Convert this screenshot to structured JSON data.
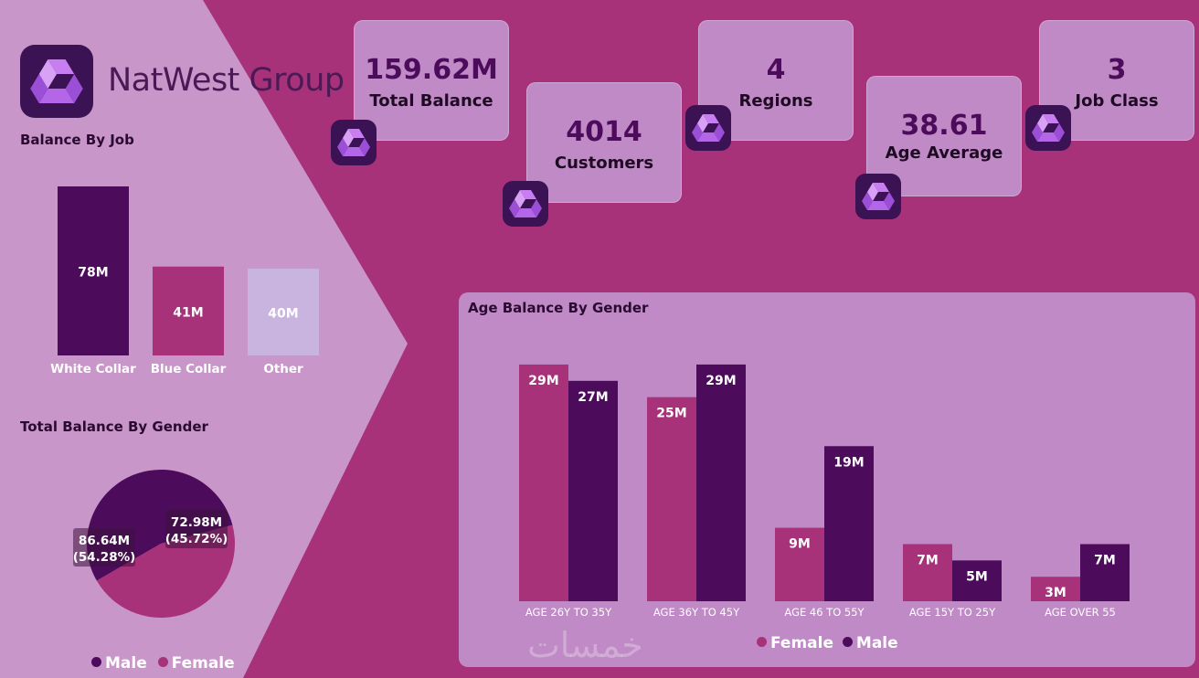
{
  "brand": {
    "name_bold": "NatWest",
    "name_light": " Group"
  },
  "colors": {
    "background": "#a8327a",
    "panel": "#bf8ac5",
    "female": "#a8327a",
    "male": "#4d0b5c",
    "other": "#c9b4e0"
  },
  "kpis": [
    {
      "value": "159.62M",
      "label": "Total Balance"
    },
    {
      "value": "4014",
      "label": "Customers"
    },
    {
      "value": "4",
      "label": "Regions"
    },
    {
      "value": "38.61",
      "label": "Age Average"
    },
    {
      "value": "3",
      "label": "Job Class"
    }
  ],
  "watermark": "خمسات",
  "chart_data": [
    {
      "type": "bar",
      "title": "Balance By Job",
      "categories": [
        "White Collar",
        "Blue Collar",
        "Other"
      ],
      "values": [
        78,
        41,
        40
      ],
      "data_labels": [
        "78M",
        "41M",
        "40M"
      ],
      "unit": "M",
      "colors": [
        "#4d0b5c",
        "#a8327a",
        "#c9b4e0"
      ]
    },
    {
      "type": "pie",
      "title": "Total Balance By Gender",
      "slices": [
        {
          "name": "Male",
          "value": 86.64,
          "percent": 54.28,
          "label": "86.64M",
          "pct_label": "(54.28%)",
          "color": "#4d0b5c"
        },
        {
          "name": "Female",
          "value": 72.98,
          "percent": 45.72,
          "label": "72.98M",
          "pct_label": "(45.72%)",
          "color": "#a8327a"
        }
      ],
      "legend": [
        "Male",
        "Female"
      ],
      "legend_position": "bottom"
    },
    {
      "type": "bar",
      "title": "Age Balance By Gender",
      "categories": [
        "AGE 26Y TO 35Y",
        "AGE 36Y TO 45Y",
        "AGE 46 TO 55Y",
        "AGE 15Y TO 25Y",
        "AGE OVER 55"
      ],
      "series": [
        {
          "name": "Female",
          "values": [
            29,
            25,
            9,
            7,
            3
          ],
          "labels": [
            "29M",
            "25M",
            "9M",
            "7M",
            "3M"
          ],
          "color": "#a8327a"
        },
        {
          "name": "Male",
          "values": [
            27,
            29,
            19,
            5,
            7
          ],
          "labels": [
            "27M",
            "29M",
            "19M",
            "5M",
            "7M"
          ],
          "color": "#4d0b5c"
        }
      ],
      "ylim": [
        0,
        30
      ],
      "legend_position": "bottom"
    }
  ]
}
